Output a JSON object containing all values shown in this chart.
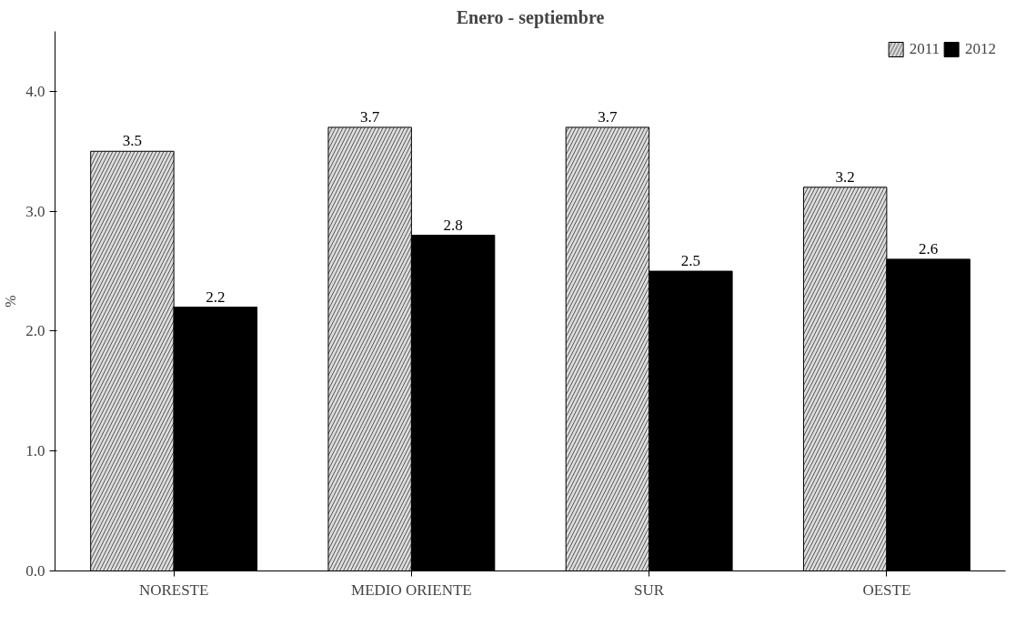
{
  "chart_data": {
    "type": "bar",
    "title": "Enero - septiembre",
    "ylabel": "%",
    "categories": [
      "NORESTE",
      "MEDIO ORIENTE",
      "SUR",
      "OESTE"
    ],
    "series": [
      {
        "name": "2011",
        "color": "#dcdcdc",
        "values": [
          3.5,
          3.7,
          3.7,
          3.2
        ]
      },
      {
        "name": "2012",
        "color": "#000000",
        "values": [
          2.2,
          2.8,
          2.5,
          2.6
        ]
      }
    ],
    "ylim": [
      0,
      4.5
    ],
    "yticks": [
      {
        "value": 0,
        "label": "0.0"
      },
      {
        "value": 1,
        "label": "1.0"
      },
      {
        "value": 2,
        "label": "2.0"
      },
      {
        "value": 3,
        "label": "3.0"
      },
      {
        "value": 4,
        "label": "4.0"
      }
    ],
    "data_labels": true,
    "grid": false,
    "legend": "top right"
  }
}
